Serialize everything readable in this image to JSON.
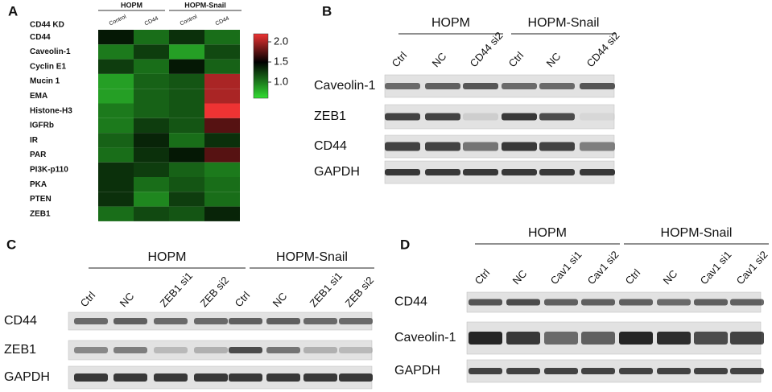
{
  "panel_a": {
    "label": "A",
    "row_header": "CD44 KD",
    "groups": [
      "HOPM",
      "HOPM-Snail"
    ],
    "columns": [
      "Control",
      "CD44",
      "Control",
      "CD44"
    ],
    "rows": [
      "CD44",
      "Caveolin-1",
      "Cyclin E1",
      "Mucin 1",
      "EMA",
      "Histone-H3",
      "IGFRb",
      "IR",
      "PAR",
      "PI3K-p110",
      "PKA",
      "PTEN",
      "ZEB1"
    ],
    "heatmap": {
      "type": "heatmap",
      "values": [
        [
          1.4,
          1.05,
          1.3,
          1.05
        ],
        [
          1.0,
          1.25,
          0.85,
          1.2
        ],
        [
          1.25,
          1.05,
          1.4,
          1.1
        ],
        [
          0.85,
          1.1,
          1.15,
          2.0
        ],
        [
          0.85,
          1.1,
          1.15,
          2.0
        ],
        [
          1.0,
          1.1,
          1.15,
          2.2
        ],
        [
          1.0,
          1.25,
          1.15,
          1.75
        ],
        [
          1.1,
          1.35,
          1.05,
          1.3
        ],
        [
          1.05,
          1.3,
          1.4,
          1.75
        ],
        [
          1.3,
          1.25,
          1.1,
          1.0
        ],
        [
          1.3,
          1.05,
          1.15,
          1.05
        ],
        [
          1.3,
          0.95,
          1.25,
          1.05
        ],
        [
          1.05,
          1.2,
          1.15,
          1.35
        ]
      ],
      "colorbar_lim": [
        0.6,
        2.2
      ],
      "colorbar_ticks": [
        {
          "value": 1,
          "label": "1.0"
        },
        1.5,
        {
          "value": 2,
          "label": "2.0"
        }
      ]
    }
  },
  "panel_b": {
    "label": "B",
    "groups": [
      "HOPM",
      "HOPM-Snail"
    ],
    "lanes": [
      "Ctrl",
      "NC",
      "CD44 si2",
      "Ctrl",
      "NC",
      "CD44 si2"
    ],
    "blots": [
      "Caveolin-1",
      "ZEB1",
      "CD44",
      "GAPDH"
    ]
  },
  "panel_c": {
    "label": "C",
    "groups": [
      "HOPM",
      "HOPM-Snail"
    ],
    "lanes": [
      "Ctrl",
      "NC",
      "ZEB1 si1",
      "ZEB si2",
      "Ctrl",
      "NC",
      "ZEB1 si1",
      "ZEB si2"
    ],
    "blots": [
      "CD44",
      "ZEB1",
      "GAPDH"
    ]
  },
  "panel_d": {
    "label": "D",
    "groups": [
      "HOPM",
      "HOPM-Snail"
    ],
    "lanes": [
      "Ctrl",
      "NC",
      "Cav1 si1",
      "Cav1 si2",
      "Ctrl",
      "NC",
      "Cav1 si1",
      "Cav1 si2"
    ],
    "blots": [
      "CD44",
      "Caveolin-1",
      "GAPDH"
    ]
  }
}
